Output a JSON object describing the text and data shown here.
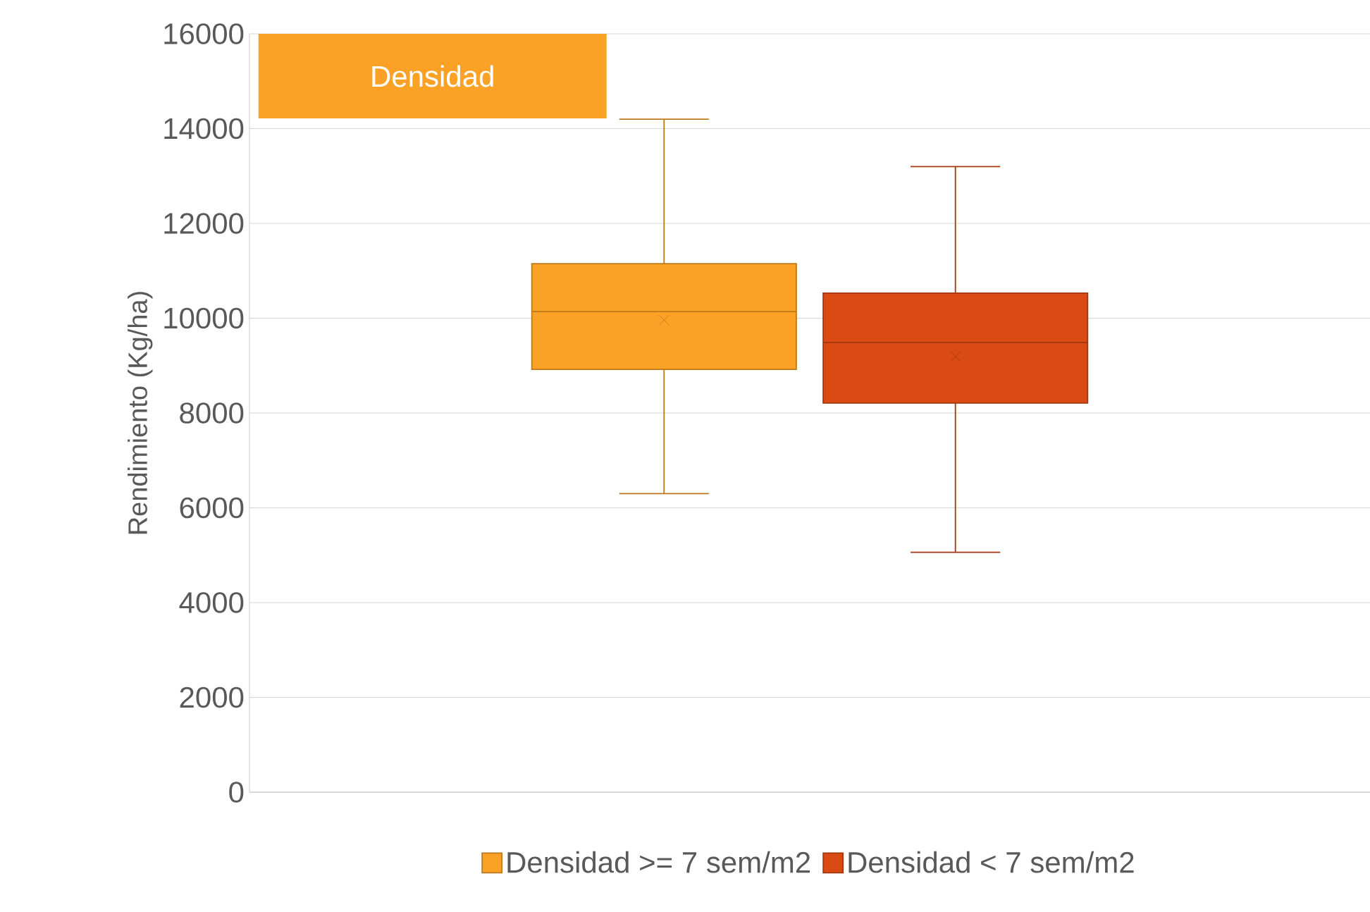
{
  "chart_data": {
    "type": "box",
    "title": "Densidad",
    "ylabel": "Rendimiento (Kg/ha)",
    "categories": [
      null
    ],
    "series": [
      {
        "name": "Densidad >= 7 sem/m2",
        "color": "#fba226",
        "boxes": [
          {
            "low": 6300,
            "q1": 8920,
            "median": 10140,
            "q3": 11150,
            "high": 14200,
            "mean": 9960
          }
        ]
      },
      {
        "name": "Densidad < 7 sem/m2",
        "color": "#d94a14",
        "boxes": [
          {
            "low": 5060,
            "q1": 8210,
            "median": 9490,
            "q3": 10530,
            "high": 13200,
            "mean": 9190
          }
        ]
      }
    ],
    "ylim": [
      0,
      16000
    ],
    "yticks": [
      0,
      2000,
      4000,
      6000,
      8000,
      10000,
      12000,
      14000,
      16000
    ],
    "grid": "y",
    "legend": "bottom",
    "tick_labels": "y"
  }
}
